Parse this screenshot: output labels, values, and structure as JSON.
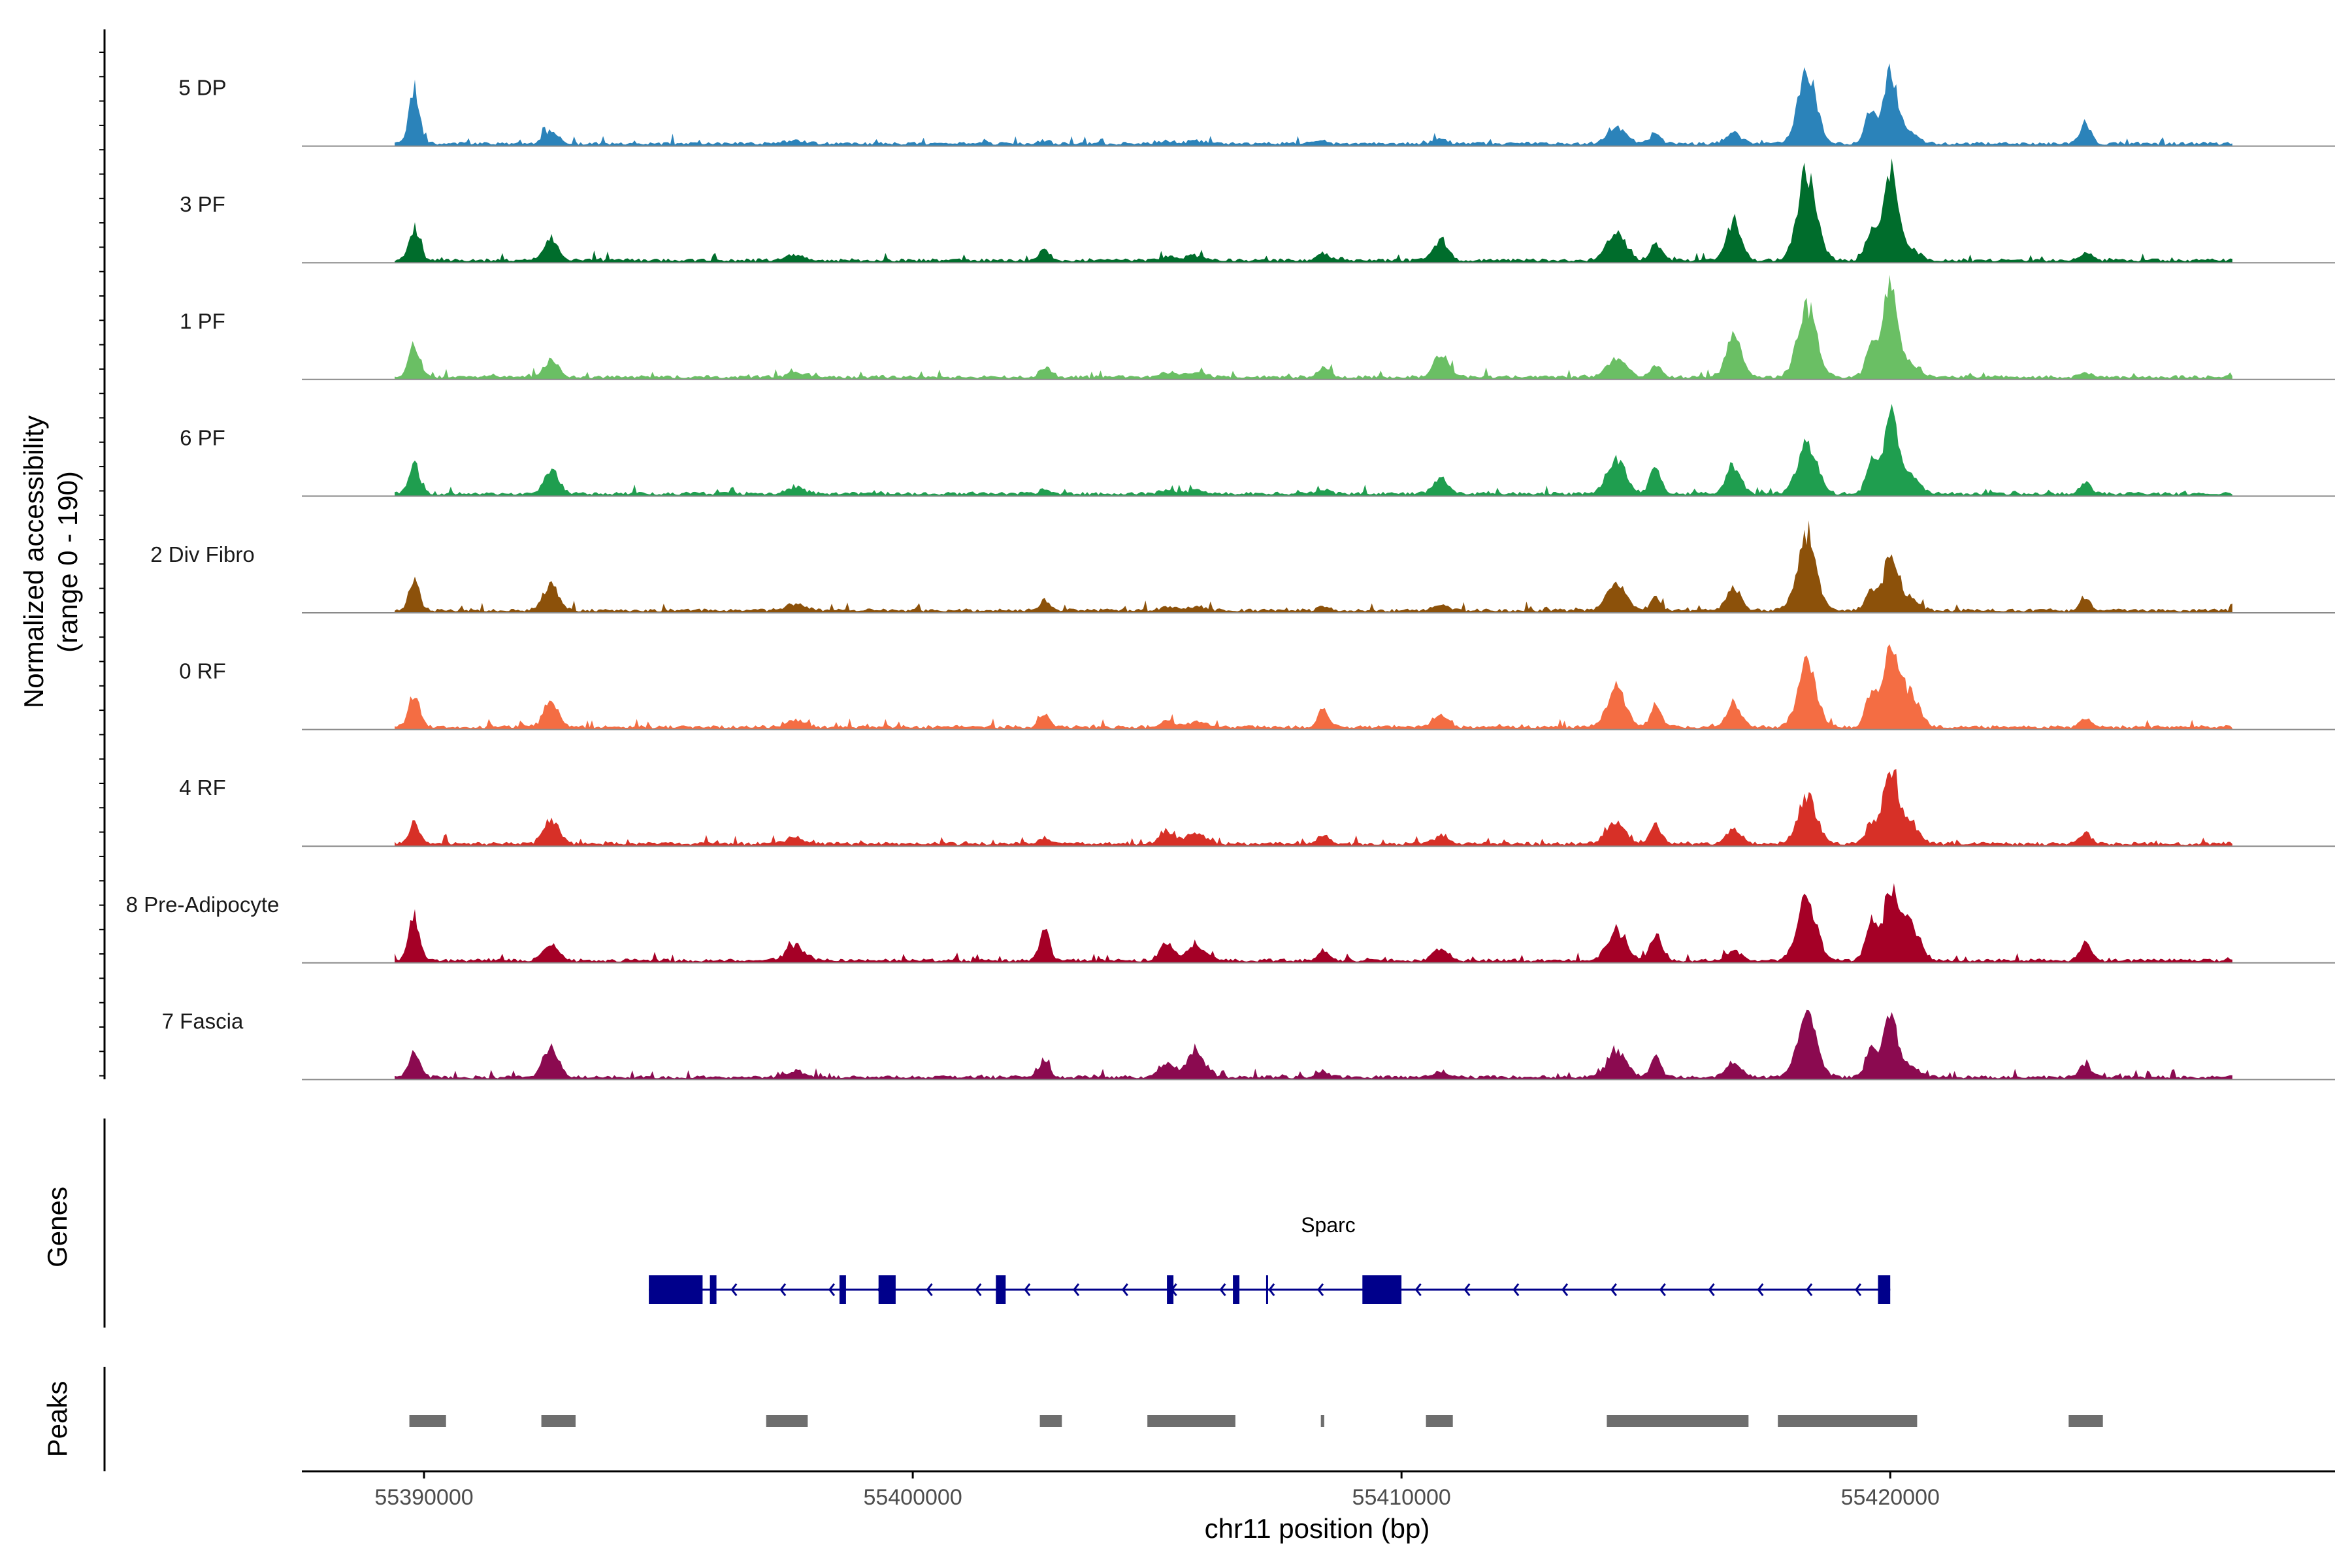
{
  "colors": {
    "axis": "#000000",
    "baseline": "#8a8a8a",
    "gene": "#00008b",
    "peak": "#6e6e6e"
  },
  "chart_data": {
    "type": "area",
    "title": "",
    "ylabel_line1": "Normalized accessibility",
    "ylabel_line2": "(range 0 - 190)",
    "ylim": [
      0,
      190
    ],
    "xlabel": "chr11 position (bp)",
    "xlim": [
      55387500,
      55429100
    ],
    "x_ticks": [
      55390000,
      55400000,
      55410000,
      55420000
    ],
    "x_tick_labels": [
      "55390000",
      "55400000",
      "55410000",
      "55420000"
    ],
    "region": [
      55389400,
      55427000
    ],
    "peak_positions": [
      55389800,
      55392600,
      55397600,
      55402700,
      55405200,
      55405800,
      55408400,
      55410800,
      55414400,
      55415200,
      55416800,
      55418300,
      55419600,
      55420000,
      55420400,
      55424000
    ],
    "tracks": [
      {
        "name": "5 DP",
        "color": "#2b83ba",
        "peaks": [
          0.55,
          0.14,
          0.03,
          0.03,
          0.03,
          0.03,
          0.03,
          0.04,
          0.17,
          0.12,
          0.12,
          0.68,
          0.35,
          0.72,
          0.1,
          0.22
        ]
      },
      {
        "name": "3 PF",
        "color": "#006d2c",
        "peaks": [
          0.34,
          0.2,
          0.06,
          0.12,
          0.04,
          0.05,
          0.08,
          0.2,
          0.28,
          0.18,
          0.42,
          0.92,
          0.3,
          0.92,
          0.12,
          0.08
        ]
      },
      {
        "name": "1 PF",
        "color": "#6abf64",
        "peaks": [
          0.35,
          0.17,
          0.04,
          0.1,
          0.04,
          0.05,
          0.1,
          0.24,
          0.2,
          0.12,
          0.42,
          0.72,
          0.3,
          0.96,
          0.12,
          0.05
        ]
      },
      {
        "name": "6 PF",
        "color": "#1f9e4f",
        "peaks": [
          0.32,
          0.25,
          0.06,
          0.04,
          0.04,
          0.04,
          0.04,
          0.16,
          0.36,
          0.3,
          0.28,
          0.55,
          0.32,
          0.8,
          0.18,
          0.12
        ]
      },
      {
        "name": "2 Div Fibro",
        "color": "#8c510a",
        "peaks": [
          0.3,
          0.26,
          0.06,
          0.1,
          0.04,
          0.04,
          0.04,
          0.05,
          0.28,
          0.14,
          0.22,
          0.8,
          0.22,
          0.56,
          0.12,
          0.12
        ]
      },
      {
        "name": "0 RF",
        "color": "#f46d43",
        "peaks": [
          0.34,
          0.26,
          0.07,
          0.12,
          0.06,
          0.06,
          0.18,
          0.13,
          0.4,
          0.22,
          0.25,
          0.68,
          0.35,
          0.88,
          0.36,
          0.08
        ]
      },
      {
        "name": "4 RF",
        "color": "#d73027",
        "peaks": [
          0.22,
          0.25,
          0.06,
          0.06,
          0.12,
          0.12,
          0.1,
          0.08,
          0.23,
          0.2,
          0.15,
          0.5,
          0.2,
          0.78,
          0.22,
          0.12
        ]
      },
      {
        "name": "8 Pre-Adipocyte",
        "color": "#a50026",
        "peaks": [
          0.45,
          0.18,
          0.16,
          0.3,
          0.16,
          0.14,
          0.12,
          0.12,
          0.28,
          0.28,
          0.1,
          0.62,
          0.42,
          0.72,
          0.4,
          0.18
        ]
      },
      {
        "name": "7 Fascia",
        "color": "#8b0a50",
        "peaks": [
          0.25,
          0.32,
          0.06,
          0.16,
          0.14,
          0.26,
          0.06,
          0.06,
          0.28,
          0.2,
          0.15,
          0.68,
          0.3,
          0.6,
          0.1,
          0.14
        ]
      }
    ],
    "genes_label": "Genes",
    "gene": {
      "name": "Sparc",
      "strand": "-",
      "start": 55394600,
      "end": 55420000,
      "exons": [
        [
          55394600,
          55395700
        ],
        [
          55395850,
          55395950
        ],
        [
          55398500,
          55398600
        ],
        [
          55399300,
          55399650
        ],
        [
          55401700,
          55401900
        ],
        [
          55405200,
          55405300
        ],
        [
          55406550,
          55406620
        ],
        [
          55409200,
          55410000
        ],
        [
          55419750,
          55420000
        ]
      ],
      "marks": [
        55407250
      ]
    },
    "peaks_label": "Peaks",
    "peak_regions": [
      [
        55389700,
        55390450
      ],
      [
        55392400,
        55393100
      ],
      [
        55397000,
        55397850
      ],
      [
        55402600,
        55403050
      ],
      [
        55404800,
        55406600
      ],
      [
        55408350,
        55408420
      ],
      [
        55410500,
        55411050
      ],
      [
        55414200,
        55417100
      ],
      [
        55417700,
        55420550
      ],
      [
        55423650,
        55424350
      ]
    ]
  }
}
